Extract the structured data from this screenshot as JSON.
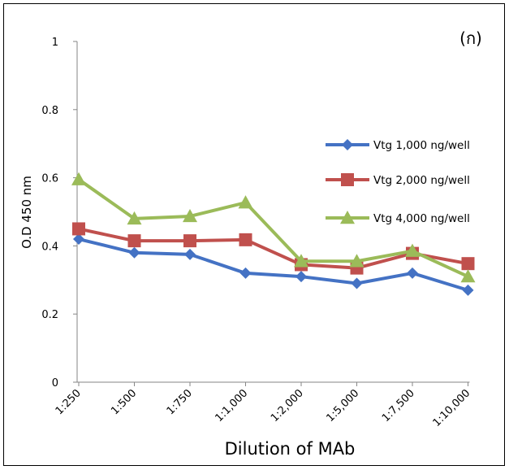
{
  "chart_data": {
    "type": "line",
    "panel_label": "(ก)",
    "xlabel": "Dilution of MAb",
    "ylabel": "O.D 450 nm",
    "ylim": [
      0,
      1
    ],
    "yticks": [
      "0",
      "0.2",
      "0.4",
      "0.6",
      "0.8",
      "1"
    ],
    "categories": [
      "1:250",
      "1:500",
      "1:750",
      "1:1,000",
      "1:2,000",
      "1:5,000",
      "1:7,500",
      "1:10,000"
    ],
    "legend_position": "right",
    "grid": false,
    "series": [
      {
        "name": "Vtg 1,000 ng/well",
        "color": "#4472C4",
        "marker": "diamond",
        "values": [
          0.42,
          0.38,
          0.375,
          0.32,
          0.31,
          0.29,
          0.32,
          0.27
        ]
      },
      {
        "name": "Vtg 2,000 ng/well",
        "color": "#C0504D",
        "marker": "square",
        "values": [
          0.45,
          0.415,
          0.415,
          0.418,
          0.345,
          0.335,
          0.378,
          0.348
        ]
      },
      {
        "name": "Vtg 4,000 ng/well",
        "color": "#9BBB59",
        "marker": "triangle",
        "values": [
          0.595,
          0.48,
          0.487,
          0.527,
          0.355,
          0.355,
          0.385,
          0.31
        ]
      }
    ]
  }
}
